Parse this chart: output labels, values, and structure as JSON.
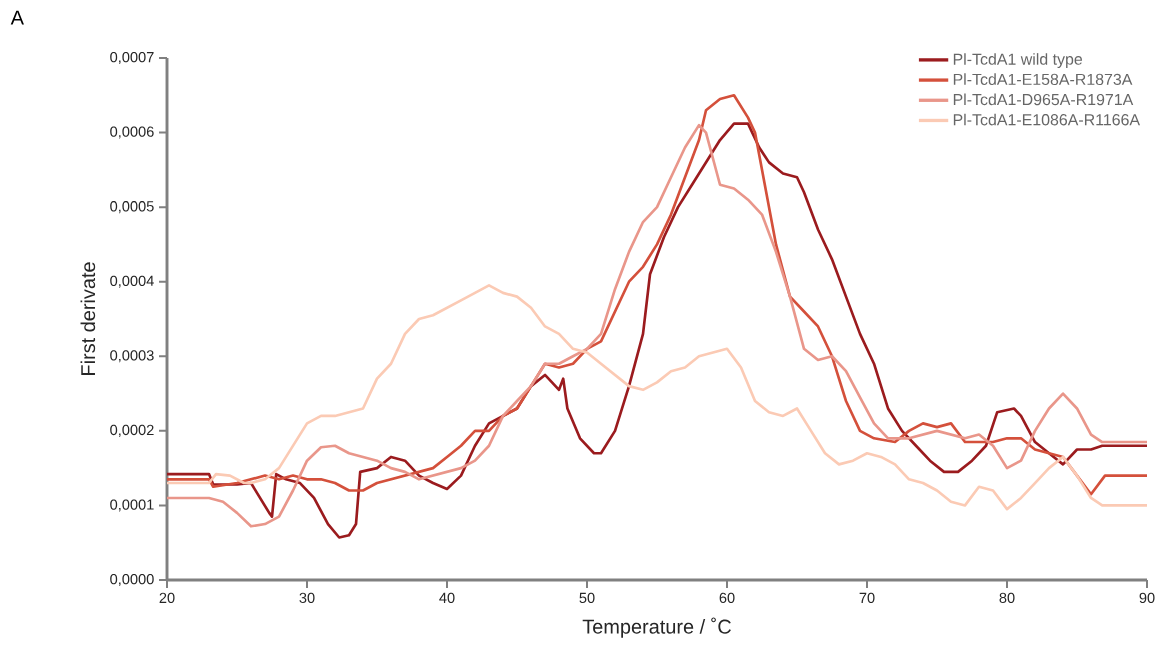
{
  "chart_data": {
    "type": "line",
    "xlabel": "Temperature / ˚C",
    "ylabel": "First derivate",
    "annotations": [
      "A"
    ],
    "xlim": [
      20,
      90
    ],
    "xticks": [
      20,
      30,
      40,
      50,
      60,
      70,
      80,
      90
    ],
    "ylim": [
      0,
      0.0007
    ],
    "yticks": [
      {
        "value": 0,
        "label": "0,0000"
      },
      {
        "value": 0.0001,
        "label": "0,0001"
      },
      {
        "value": 0.0002,
        "label": "0,0002"
      },
      {
        "value": 0.0003,
        "label": "0,0003"
      },
      {
        "value": 0.0004,
        "label": "0,0004"
      },
      {
        "value": 0.0005,
        "label": "0,0005"
      },
      {
        "value": 0.0006,
        "label": "0,0006"
      },
      {
        "value": 0.0007,
        "label": "0,0007"
      }
    ],
    "legend": "top right",
    "marker": "none",
    "line_style": "solid",
    "series": [
      {
        "name": "Pl-TcdA1 wild type",
        "color": "#9b1b1e",
        "x": [
          20,
          23,
          23.3,
          25,
          26,
          27.3,
          27.5,
          27.8,
          28.5,
          29.5,
          30.5,
          31.5,
          32.3,
          33,
          33.5,
          33.8,
          35,
          36,
          37,
          38,
          39,
          40,
          41,
          42,
          43,
          44,
          45,
          46,
          47,
          48,
          48.3,
          48.6,
          49.5,
          50.5,
          51,
          52,
          53,
          54,
          54.5,
          55.5,
          56.5,
          57.5,
          58.5,
          59.5,
          60.5,
          61.5,
          62.3,
          63,
          64,
          65,
          65.5,
          66.5,
          67.5,
          68.5,
          69.5,
          70.5,
          71.5,
          72.5,
          73.5,
          74.5,
          75.5,
          76.5,
          77.5,
          78.5,
          79.3,
          80.5,
          81,
          82,
          83,
          84,
          85,
          86,
          86.8,
          90
        ],
        "values": [
          0.000142,
          0.000142,
          0.000128,
          0.000128,
          0.00013,
          9e-05,
          8.5e-05,
          0.000142,
          0.000135,
          0.00013,
          0.00011,
          7.5e-05,
          5.7e-05,
          6e-05,
          7.5e-05,
          0.000145,
          0.00015,
          0.000165,
          0.00016,
          0.00014,
          0.00013,
          0.000122,
          0.00014,
          0.00018,
          0.00021,
          0.00022,
          0.00023,
          0.00026,
          0.000275,
          0.000255,
          0.00027,
          0.00023,
          0.00019,
          0.00017,
          0.00017,
          0.0002,
          0.00026,
          0.00033,
          0.00041,
          0.00046,
          0.0005,
          0.00053,
          0.00056,
          0.00059,
          0.000612,
          0.000612,
          0.00058,
          0.00056,
          0.000545,
          0.00054,
          0.00052,
          0.00047,
          0.00043,
          0.00038,
          0.00033,
          0.00029,
          0.00023,
          0.0002,
          0.00018,
          0.00016,
          0.000145,
          0.000145,
          0.00016,
          0.00018,
          0.000225,
          0.00023,
          0.00022,
          0.000185,
          0.00017,
          0.000155,
          0.000175,
          0.000175,
          0.00018,
          0.00018
        ]
      },
      {
        "name": "Pl-TcdA1-E158A-R1873A",
        "color": "#d4503b",
        "x": [
          20,
          23,
          23.3,
          25,
          26,
          27,
          28,
          29,
          30,
          31,
          32,
          33,
          34,
          35,
          36,
          37,
          38,
          39,
          40,
          41,
          42,
          43,
          44,
          45,
          46,
          47,
          48,
          49,
          50,
          51,
          52,
          53,
          54,
          55,
          56,
          57,
          58,
          58.5,
          59.5,
          60.5,
          61.5,
          62,
          62.5,
          63.5,
          64.5,
          65.5,
          66.5,
          67.5,
          68.5,
          69.5,
          70.5,
          72,
          73,
          74,
          75,
          76,
          77,
          78,
          79,
          80,
          81,
          82,
          83,
          84,
          85,
          86,
          87,
          90
        ],
        "values": [
          0.000135,
          0.000135,
          0.000125,
          0.00013,
          0.000135,
          0.00014,
          0.000135,
          0.00014,
          0.000135,
          0.000135,
          0.00013,
          0.00012,
          0.00012,
          0.00013,
          0.000135,
          0.00014,
          0.000145,
          0.00015,
          0.000165,
          0.00018,
          0.0002,
          0.0002,
          0.00022,
          0.00023,
          0.00026,
          0.00029,
          0.000285,
          0.00029,
          0.00031,
          0.00032,
          0.00036,
          0.0004,
          0.00042,
          0.00045,
          0.00049,
          0.00054,
          0.00059,
          0.00063,
          0.000645,
          0.00065,
          0.00062,
          0.0006,
          0.00055,
          0.00045,
          0.00038,
          0.00036,
          0.00034,
          0.0003,
          0.00024,
          0.0002,
          0.00019,
          0.000185,
          0.0002,
          0.00021,
          0.000205,
          0.00021,
          0.000185,
          0.000185,
          0.000185,
          0.00019,
          0.00019,
          0.000175,
          0.00017,
          0.000165,
          0.00014,
          0.000115,
          0.00014,
          0.00014
        ]
      },
      {
        "name": "Pl-TcdA1-D965A-R1971A",
        "color": "#e9968a",
        "x": [
          20,
          23,
          24,
          25,
          26,
          27,
          28,
          29,
          30,
          31,
          32,
          33,
          34,
          35,
          36,
          37,
          38,
          39,
          40,
          41,
          42,
          43,
          44,
          45,
          46,
          47,
          48,
          49,
          50,
          51,
          52,
          53,
          54,
          55,
          56,
          57,
          58,
          58.5,
          59.5,
          60.5,
          61.5,
          62.5,
          63.5,
          64.5,
          65.5,
          66.5,
          67.5,
          68.5,
          69.5,
          70.5,
          71.5,
          73,
          75,
          76,
          77,
          78,
          79,
          80,
          81,
          82,
          83,
          84,
          85,
          86,
          86.8,
          90
        ],
        "values": [
          0.00011,
          0.00011,
          0.000105,
          9e-05,
          7.2e-05,
          7.5e-05,
          8.5e-05,
          0.00012,
          0.00016,
          0.000178,
          0.00018,
          0.00017,
          0.000165,
          0.00016,
          0.00015,
          0.000145,
          0.000135,
          0.00014,
          0.000145,
          0.00015,
          0.00016,
          0.00018,
          0.00022,
          0.00024,
          0.00026,
          0.00029,
          0.00029,
          0.0003,
          0.00031,
          0.00033,
          0.00039,
          0.00044,
          0.00048,
          0.0005,
          0.00054,
          0.00058,
          0.00061,
          0.0006,
          0.00053,
          0.000525,
          0.00051,
          0.00049,
          0.00044,
          0.00038,
          0.00031,
          0.000295,
          0.0003,
          0.00028,
          0.000245,
          0.00021,
          0.00019,
          0.00019,
          0.0002,
          0.000195,
          0.00019,
          0.000195,
          0.00018,
          0.00015,
          0.00016,
          0.0002,
          0.00023,
          0.00025,
          0.00023,
          0.000195,
          0.000185,
          0.000185
        ]
      },
      {
        "name": "Pl-TcdA1-E1086A-R1166A",
        "color": "#fbcab4",
        "x": [
          20,
          23,
          23.5,
          24.5,
          25.5,
          26,
          27,
          28,
          29,
          30,
          31,
          32,
          33,
          34,
          35,
          36,
          37,
          38,
          39,
          40,
          41,
          42,
          43,
          44,
          45,
          46,
          47,
          48,
          49,
          50,
          51,
          52,
          53,
          54,
          55,
          56,
          57,
          58,
          59,
          60,
          61,
          62,
          63,
          64,
          65,
          66,
          67,
          68,
          69,
          70,
          71,
          72,
          73,
          74,
          75,
          76,
          77,
          78,
          79,
          80,
          81,
          82,
          83,
          84,
          85,
          86,
          86.8,
          90
        ],
        "values": [
          0.00013,
          0.00013,
          0.000142,
          0.00014,
          0.00013,
          0.00013,
          0.000135,
          0.00015,
          0.00018,
          0.00021,
          0.00022,
          0.00022,
          0.000225,
          0.00023,
          0.00027,
          0.00029,
          0.00033,
          0.00035,
          0.000355,
          0.000365,
          0.000375,
          0.000385,
          0.000395,
          0.000385,
          0.00038,
          0.000365,
          0.00034,
          0.00033,
          0.00031,
          0.000305,
          0.00029,
          0.000275,
          0.00026,
          0.000255,
          0.000265,
          0.00028,
          0.000285,
          0.0003,
          0.000305,
          0.00031,
          0.000285,
          0.00024,
          0.000225,
          0.00022,
          0.00023,
          0.0002,
          0.00017,
          0.000155,
          0.00016,
          0.00017,
          0.000165,
          0.000155,
          0.000135,
          0.00013,
          0.00012,
          0.000105,
          0.0001,
          0.000125,
          0.00012,
          9.5e-05,
          0.00011,
          0.00013,
          0.00015,
          0.000165,
          0.00014,
          0.00011,
          0.0001,
          0.0001
        ]
      }
    ]
  }
}
